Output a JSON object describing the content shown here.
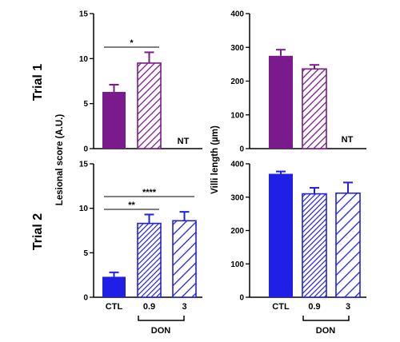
{
  "colors": {
    "trial1": "#7a1a8c",
    "trial2": "#1f1fe6"
  },
  "labels": {
    "row1": "Trial 1",
    "row2": "Trial 2",
    "ylabel_left": "Lesional score (A.U.)",
    "ylabel_right": "Villi length (µm)",
    "don_left": "DON",
    "don_right": "DON",
    "nt1": "NT",
    "nt2": "NT"
  },
  "chart_data": [
    {
      "id": "p1",
      "type": "bar",
      "categories": [
        "CTL",
        "0.9",
        "3"
      ],
      "values": [
        6.3,
        9.5,
        null
      ],
      "errors": [
        0.8,
        1.2,
        null
      ],
      "ylim": [
        0,
        15
      ],
      "yticks": [
        "0",
        "5",
        "10",
        "15"
      ],
      "not_tested": "NT",
      "significance": [
        {
          "from": 0,
          "to": 1,
          "label": "*"
        }
      ]
    },
    {
      "id": "p2",
      "type": "bar",
      "categories": [
        "CTL",
        "0.9",
        "3"
      ],
      "values": [
        275,
        236,
        null
      ],
      "errors": [
        18,
        12,
        null
      ],
      "ylim": [
        0,
        400
      ],
      "yticks": [
        "0",
        "100",
        "200",
        "300",
        "400"
      ],
      "not_tested": "NT",
      "significance": []
    },
    {
      "id": "p3",
      "type": "bar",
      "categories": [
        "CTL",
        "0.9",
        "3"
      ],
      "values": [
        2.3,
        8.3,
        8.6
      ],
      "errors": [
        0.5,
        1.0,
        1.0
      ],
      "ylim": [
        0,
        15
      ],
      "yticks": [
        "0",
        "5",
        "10",
        "15"
      ],
      "xlabels": [
        "CTL",
        "0.9",
        "3"
      ],
      "significance": [
        {
          "from": 0,
          "to": 1,
          "label": "**"
        },
        {
          "from": 0,
          "to": 2,
          "label": "****"
        }
      ]
    },
    {
      "id": "p4",
      "type": "bar",
      "categories": [
        "CTL",
        "0.9",
        "3"
      ],
      "values": [
        370,
        310,
        312
      ],
      "errors": [
        7,
        18,
        32
      ],
      "ylim": [
        0,
        400
      ],
      "yticks": [
        "0",
        "100",
        "200",
        "300",
        "400"
      ],
      "xlabels": [
        "CTL",
        "0.9",
        "3"
      ],
      "significance": []
    }
  ]
}
